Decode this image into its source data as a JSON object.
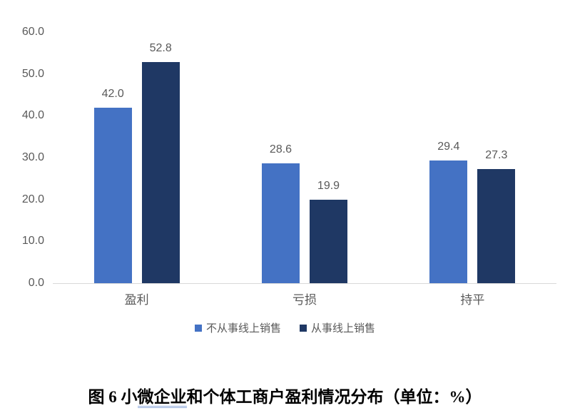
{
  "chart_data": {
    "type": "bar",
    "categories": [
      "盈利",
      "亏损",
      "持平"
    ],
    "series": [
      {
        "name": "不从事线上销售",
        "color": "#4472C4",
        "values": [
          42.0,
          28.6,
          29.4
        ]
      },
      {
        "name": "从事线上销售",
        "color": "#1F3864",
        "values": [
          52.8,
          19.9,
          27.3
        ]
      }
    ],
    "ylim": [
      0,
      60
    ],
    "ytick_values": [
      60,
      50,
      40,
      30,
      20,
      10,
      0
    ],
    "value_label_decimals": 1,
    "grid": false,
    "legend_position": "bottom",
    "title": "图 6 小微企业和个体工商户盈利情况分布（单位：%）"
  },
  "caption": {
    "prefix": "图 6 小",
    "underlined": "微企业",
    "suffix": "和个体工商户盈利情况分布（单位：%）"
  },
  "colors": {
    "series_1": "#4472C4",
    "series_2": "#1F3864",
    "axis_line": "#D9D9D9",
    "label_text": "#595959",
    "caption_underline": "#8FAADC"
  }
}
